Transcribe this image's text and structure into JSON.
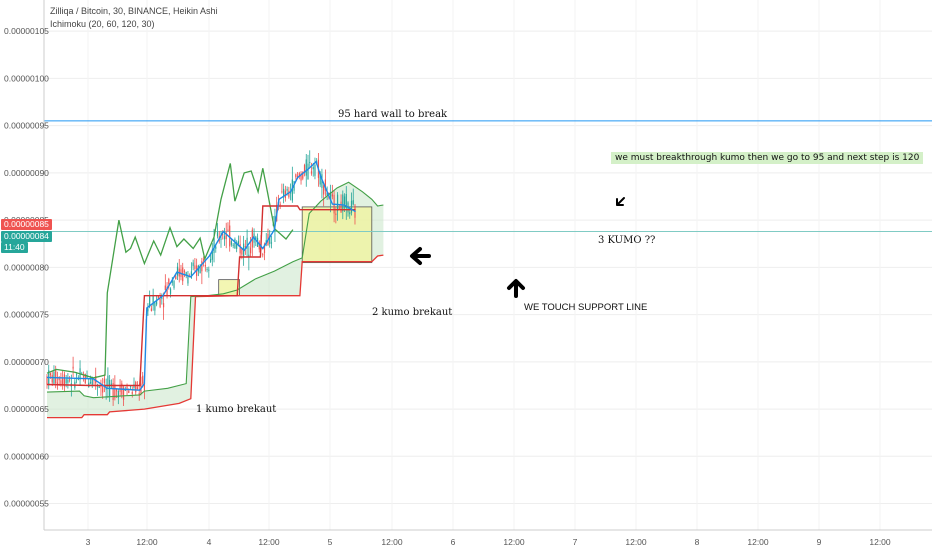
{
  "header": {
    "title": "Zilliqa / Bitcoin, 30, BINANCE, Heikin Ashi",
    "indicator": "Ichimoku (20, 60, 120, 30)"
  },
  "price_tags": {
    "red": "0.00000085",
    "green": "0.00000084",
    "timer": "11:40"
  },
  "annotations": {
    "wall": "95 hard wall to break",
    "kumo1": "1 kumo brekaut",
    "kumo2": "2 kumo brekaut",
    "kumo3": "3 KUMO ??",
    "support": "WE TOUCH SUPPORT LINE",
    "plan": "we must breakthrough kumo then we go  to 95 and next step is 120"
  },
  "colors": {
    "bull": "#26a69a",
    "bear": "#ef5350",
    "tenkan": "#1e88e5",
    "kijun": "#d32f2f",
    "chikou": "#43a047",
    "span_a": "#43a047",
    "span_b": "#e53935",
    "cloud_green": "#c8e6c9",
    "cloud_red": "#ffcdd2",
    "hline_blue": "#2196f3",
    "hline_cyan": "#80cbc4",
    "box_fill": "#f0f4a0",
    "tag_red": "#ef5350",
    "tag_green": "#26a69a"
  },
  "chart_data": {
    "type": "candlestick",
    "title": "Zilliqa / Bitcoin, 30, BINANCE, Heikin Ashi",
    "y_ticks": [
      "0.00000105",
      "0.00000100",
      "0.00000095",
      "0.00000090",
      "0.00000085",
      "0.00000080",
      "0.00000075",
      "0.00000070",
      "0.00000065",
      "0.00000060",
      "0.00000055"
    ],
    "x_ticks": [
      "3",
      "12:00",
      "4",
      "12:00",
      "5",
      "12:00",
      "6",
      "12:00",
      "7",
      "12:00",
      "8",
      "12:00",
      "9",
      "12:00"
    ],
    "ylim": [
      5.22e-07,
      1.083e-06
    ],
    "xlim": [
      0,
      440
    ],
    "horizontal_lines": [
      {
        "value": 9.55e-07,
        "color": "blue"
      },
      {
        "value": 8.38e-07,
        "color": "cyan"
      }
    ],
    "tenkan": [
      [
        0,
        6.835e-07
      ],
      [
        40,
        6.82e-07
      ],
      [
        52,
        6.72e-07
      ],
      [
        80,
        6.7e-07
      ],
      [
        84,
        6.77e-07
      ],
      [
        86,
        7.57e-07
      ],
      [
        100,
        7.7e-07
      ],
      [
        112,
        7.95e-07
      ],
      [
        124,
        7.9e-07
      ],
      [
        140,
        8.12e-07
      ],
      [
        152,
        8.38e-07
      ],
      [
        170,
        8.18e-07
      ],
      [
        178,
        8.32e-07
      ],
      [
        186,
        8.2e-07
      ],
      [
        196,
        8.4e-07
      ],
      [
        200,
        8.72e-07
      ],
      [
        210,
        8.8e-07
      ],
      [
        216,
        8.95e-07
      ],
      [
        226,
        9.05e-07
      ],
      [
        232,
        9.12e-07
      ],
      [
        236,
        8.96e-07
      ],
      [
        246,
        8.67e-07
      ],
      [
        256,
        8.66e-07
      ],
      [
        266,
        8.59e-07
      ]
    ],
    "kijun": [
      [
        0,
        6.76e-07
      ],
      [
        38,
        6.75e-07
      ],
      [
        52,
        6.75e-07
      ],
      [
        80,
        6.75e-07
      ],
      [
        84,
        7.7e-07
      ],
      [
        164,
        7.7e-07
      ],
      [
        166,
        8.11e-07
      ],
      [
        184,
        8.11e-07
      ],
      [
        186,
        8.65e-07
      ],
      [
        216,
        8.65e-07
      ],
      [
        218,
        8.61e-07
      ],
      [
        266,
        8.61e-07
      ]
    ],
    "chikou": [
      [
        0,
        6.88e-07
      ],
      [
        8,
        6.92e-07
      ],
      [
        24,
        6.89e-07
      ],
      [
        40,
        6.83e-07
      ],
      [
        50,
        6.86e-07
      ],
      [
        52,
        7.73e-07
      ],
      [
        62,
        8.5e-07
      ],
      [
        68,
        8.16e-07
      ],
      [
        72,
        8.2e-07
      ],
      [
        76,
        8.32e-07
      ],
      [
        84,
        8.04e-07
      ],
      [
        92,
        8.28e-07
      ],
      [
        98,
        8.13e-07
      ],
      [
        106,
        8.42e-07
      ],
      [
        112,
        8.22e-07
      ],
      [
        118,
        8.3e-07
      ],
      [
        126,
        8.2e-07
      ],
      [
        132,
        8.31e-07
      ],
      [
        136,
        8.09e-07
      ],
      [
        144,
        8.32e-07
      ],
      [
        150,
        8.72e-07
      ],
      [
        158,
        9.1e-07
      ],
      [
        162,
        8.7e-07
      ],
      [
        170,
        9e-07
      ],
      [
        176,
        9.02e-07
      ],
      [
        182,
        8.8e-07
      ],
      [
        186,
        9.05e-07
      ],
      [
        190,
        8.8e-07
      ],
      [
        196,
        8.41e-07
      ],
      [
        206,
        8.3e-07
      ],
      [
        212,
        8.4e-07
      ]
    ],
    "span_a": [
      [
        0,
        6.68e-07
      ],
      [
        28,
        6.69e-07
      ],
      [
        32,
        6.64e-07
      ],
      [
        40,
        6.62e-07
      ],
      [
        80,
        6.65e-07
      ],
      [
        84,
        6.69e-07
      ],
      [
        104,
        6.72e-07
      ],
      [
        120,
        6.77e-07
      ],
      [
        124,
        7.69e-07
      ],
      [
        138,
        7.7e-07
      ],
      [
        152,
        7.72e-07
      ],
      [
        164,
        7.76e-07
      ],
      [
        180,
        7.88e-07
      ],
      [
        196,
        7.96e-07
      ],
      [
        212,
        8.06e-07
      ],
      [
        220,
        8.1e-07
      ],
      [
        226,
        8.57e-07
      ],
      [
        236,
        8.7e-07
      ],
      [
        250,
        8.84e-07
      ],
      [
        260,
        8.9e-07
      ],
      [
        272,
        8.8e-07
      ],
      [
        280,
        8.72e-07
      ],
      [
        285,
        8.65e-07
      ],
      [
        290,
        8.66e-07
      ]
    ],
    "span_b": [
      [
        0,
        6.41e-07
      ],
      [
        30,
        6.41e-07
      ],
      [
        32,
        6.44e-07
      ],
      [
        52,
        6.44e-07
      ],
      [
        54,
        6.47e-07
      ],
      [
        84,
        6.5e-07
      ],
      [
        114,
        6.56e-07
      ],
      [
        124,
        6.61e-07
      ],
      [
        128,
        7.69e-07
      ],
      [
        164,
        7.7e-07
      ],
      [
        218,
        7.7e-07
      ],
      [
        220,
        8.06e-07
      ],
      [
        280,
        8.06e-07
      ],
      [
        285,
        8.12e-07
      ],
      [
        290,
        8.13e-07
      ]
    ],
    "yellow_boxes": [
      {
        "x0": 148,
        "x1": 166,
        "y0": 7.7e-07,
        "y1": 7.87e-07
      },
      {
        "x0": 220,
        "x1": 280,
        "y0": 8.05e-07,
        "y1": 8.64e-07
      }
    ]
  }
}
